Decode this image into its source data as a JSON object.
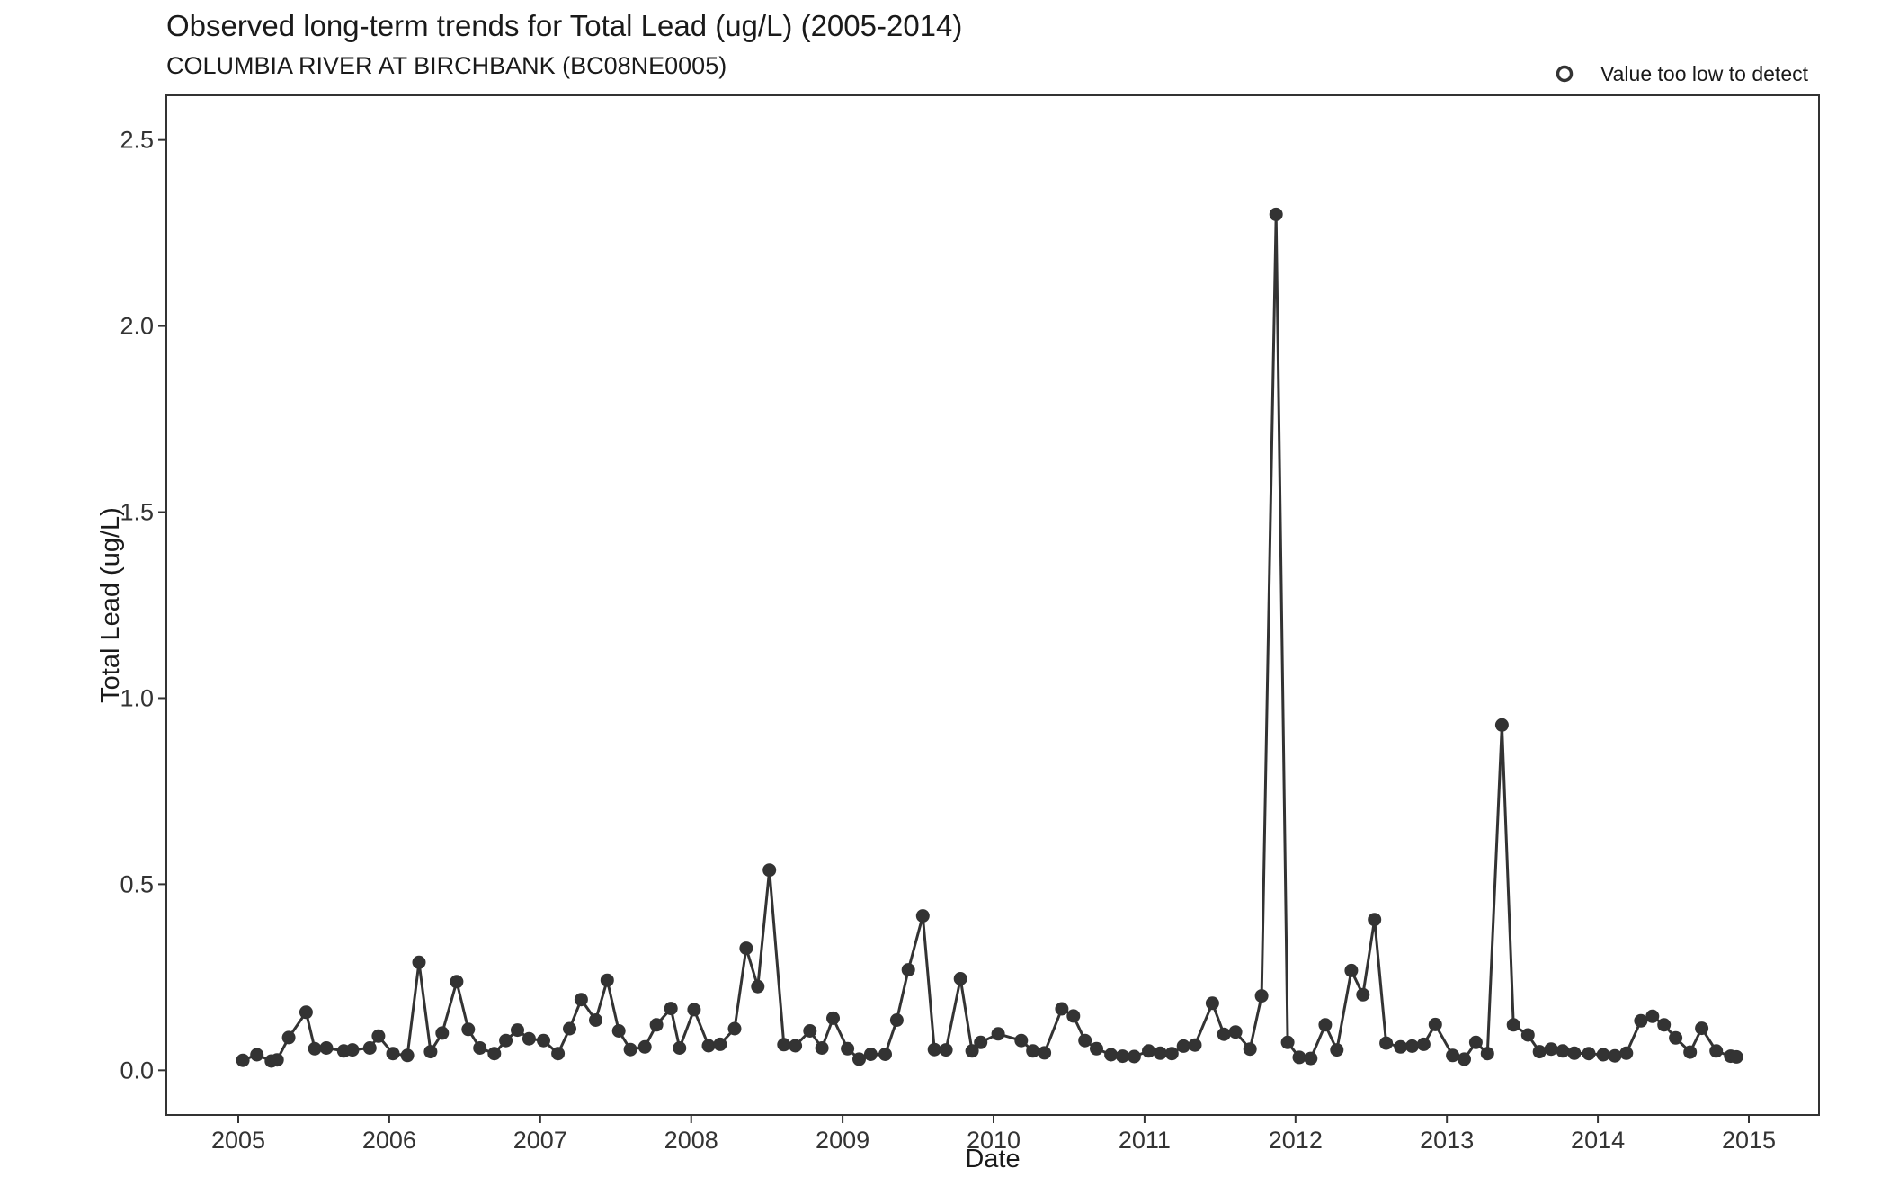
{
  "chart_data": {
    "type": "line",
    "title": "Observed long-term trends for Total Lead (ug/L) (2005-2014)",
    "subtitle": "COLUMBIA RIVER AT BIRCHBANK (BC08NE0005)",
    "xlabel": "Date",
    "ylabel": "Total Lead (ug/L)",
    "xlim": [
      "2005",
      "2015"
    ],
    "ylim": [
      -0.12,
      2.62
    ],
    "x_ticks": [
      "2005",
      "2006",
      "2007",
      "2008",
      "2009",
      "2010",
      "2011",
      "2012",
      "2013",
      "2014",
      "2015"
    ],
    "y_ticks": [
      0.0,
      0.5,
      1.0,
      1.5,
      2.0,
      2.5
    ],
    "y_tick_labels": [
      "0.0",
      "0.5",
      "1.0",
      "1.5",
      "2.0",
      "2.5"
    ],
    "grid": false,
    "legend": {
      "position": "top-right",
      "entries": [
        {
          "label": "Value too low to detect",
          "marker": "open-circle"
        }
      ]
    },
    "colors": {
      "series": "#333333",
      "frame": "#333333"
    },
    "series": [
      {
        "marker": "filled-circle",
        "x": [
          "2005-01-12",
          "2005-02-15",
          "2005-03-22",
          "2005-04-05",
          "2005-05-03",
          "2005-06-14",
          "2005-07-05",
          "2005-08-02",
          "2005-09-13",
          "2005-10-04",
          "2005-11-15",
          "2005-12-06",
          "2006-01-10",
          "2006-02-14",
          "2006-03-14",
          "2006-04-11",
          "2006-05-09",
          "2006-06-13",
          "2006-07-11",
          "2006-08-08",
          "2006-09-12",
          "2006-10-10",
          "2006-11-07",
          "2006-12-05",
          "2007-01-09",
          "2007-02-13",
          "2007-03-13",
          "2007-04-10",
          "2007-05-15",
          "2007-06-12",
          "2007-07-10",
          "2007-08-07",
          "2007-09-11",
          "2007-10-09",
          "2007-11-13",
          "2007-12-04",
          "2008-01-08",
          "2008-02-12",
          "2008-03-11",
          "2008-04-15",
          "2008-05-13",
          "2008-06-10",
          "2008-07-08",
          "2008-08-12",
          "2008-09-09",
          "2008-10-14",
          "2008-11-12",
          "2008-12-09",
          "2009-01-13",
          "2009-02-10",
          "2009-03-10",
          "2009-04-14",
          "2009-05-12",
          "2009-06-09",
          "2009-07-14",
          "2009-08-11",
          "2009-09-08",
          "2009-10-13",
          "2009-11-10",
          "2009-12-01",
          "2010-01-12",
          "2010-03-09",
          "2010-04-06",
          "2010-05-04",
          "2010-06-15",
          "2010-07-13",
          "2010-08-10",
          "2010-09-07",
          "2010-10-12",
          "2010-11-09",
          "2010-12-07",
          "2011-01-11",
          "2011-02-08",
          "2011-03-08",
          "2011-04-05",
          "2011-05-03",
          "2011-06-14",
          "2011-07-12",
          "2011-08-09",
          "2011-09-13",
          "2011-10-11",
          "2011-11-15",
          "2011-12-13",
          "2012-01-10",
          "2012-02-07",
          "2012-03-13",
          "2012-04-10",
          "2012-05-15",
          "2012-06-12",
          "2012-07-10",
          "2012-08-07",
          "2012-09-11",
          "2012-10-09",
          "2012-11-06",
          "2012-12-04",
          "2013-01-15",
          "2013-02-12",
          "2013-03-12",
          "2013-04-09",
          "2013-05-14",
          "2013-06-11",
          "2013-07-16",
          "2013-08-13",
          "2013-09-10",
          "2013-10-08",
          "2013-11-05",
          "2013-12-10",
          "2014-01-14",
          "2014-02-11",
          "2014-03-11",
          "2014-04-15",
          "2014-05-13",
          "2014-06-10",
          "2014-07-08",
          "2014-08-12",
          "2014-09-09",
          "2014-10-14",
          "2014-11-18",
          "2014-12-02"
        ],
        "y": [
          0.027,
          0.042,
          0.025,
          0.028,
          0.088,
          0.156,
          0.058,
          0.06,
          0.052,
          0.055,
          0.06,
          0.092,
          0.045,
          0.04,
          0.29,
          0.05,
          0.1,
          0.238,
          0.11,
          0.06,
          0.045,
          0.08,
          0.108,
          0.085,
          0.08,
          0.045,
          0.112,
          0.19,
          0.135,
          0.242,
          0.106,
          0.056,
          0.063,
          0.122,
          0.166,
          0.06,
          0.163,
          0.066,
          0.07,
          0.112,
          0.328,
          0.225,
          0.538,
          0.069,
          0.066,
          0.106,
          0.06,
          0.14,
          0.058,
          0.03,
          0.043,
          0.043,
          0.135,
          0.27,
          0.415,
          0.056,
          0.055,
          0.246,
          0.052,
          0.075,
          0.098,
          0.08,
          0.052,
          0.047,
          0.165,
          0.146,
          0.08,
          0.058,
          0.042,
          0.038,
          0.037,
          0.052,
          0.046,
          0.045,
          0.065,
          0.068,
          0.18,
          0.097,
          0.103,
          0.057,
          0.2,
          2.3,
          0.075,
          0.035,
          0.032,
          0.122,
          0.055,
          0.268,
          0.203,
          0.405,
          0.073,
          0.063,
          0.065,
          0.07,
          0.123,
          0.04,
          0.03,
          0.075,
          0.045,
          0.928,
          0.122,
          0.095,
          0.05,
          0.057,
          0.052,
          0.046,
          0.045,
          0.042,
          0.039,
          0.046,
          0.133,
          0.145,
          0.122,
          0.087,
          0.049,
          0.113,
          0.052,
          0.038,
          0.036
        ]
      }
    ]
  }
}
